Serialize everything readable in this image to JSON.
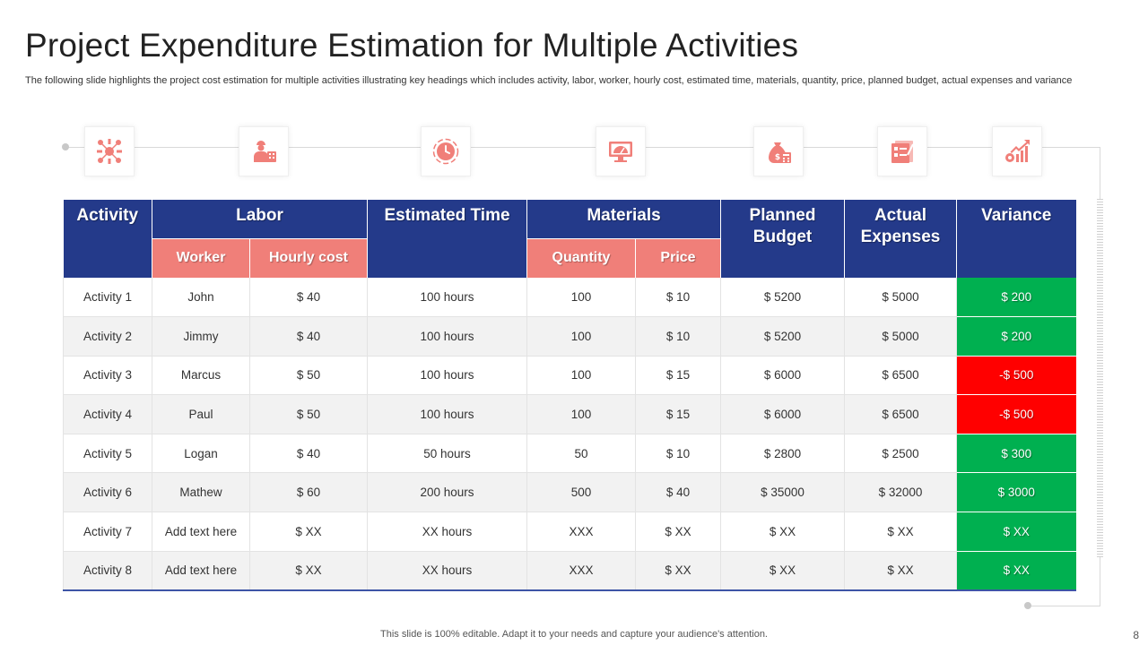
{
  "title": "Project Expenditure Estimation for Multiple Activities",
  "subtitle": "The following slide highlights the project cost estimation for multiple activities illustrating key headings which includes activity, labor, worker, hourly cost, estimated time, materials, quantity, price, planned budget, actual expenses and variance",
  "colors": {
    "header_blue": "#243a8a",
    "subheader_coral": "#f07f79",
    "positive_green": "#00b050",
    "negative_red": "#ff0000",
    "icon_coral": "#f07f79"
  },
  "icons": [
    "network-icon",
    "workers-icon",
    "clock-icon",
    "monitor-icon",
    "money-bag-icon",
    "checklist-icon",
    "growth-chart-icon"
  ],
  "table": {
    "headers": {
      "activity": "Activity",
      "labor": "Labor",
      "estimated_time": "Estimated Time",
      "materials": "Materials",
      "planned_budget": "Planned Budget",
      "actual_expenses": "Actual Expenses",
      "variance": "Variance"
    },
    "subheaders": {
      "worker": "Worker",
      "hourly_cost": "Hourly cost",
      "quantity": "Quantity",
      "price": "Price"
    },
    "rows": [
      {
        "activity": "Activity 1",
        "worker": "John",
        "hourly_cost": "$ 40",
        "time": "100  hours",
        "quantity": "100",
        "price": "$ 10",
        "planned": "$ 5200",
        "actual": "$ 5000",
        "variance": "$ 200",
        "status": "positive"
      },
      {
        "activity": "Activity 2",
        "worker": "Jimmy",
        "hourly_cost": "$ 40",
        "time": "100  hours",
        "quantity": "100",
        "price": "$ 10",
        "planned": "$ 5200",
        "actual": "$ 5000",
        "variance": "$ 200",
        "status": "positive"
      },
      {
        "activity": "Activity 3",
        "worker": "Marcus",
        "hourly_cost": "$ 50",
        "time": "100  hours",
        "quantity": "100",
        "price": "$ 15",
        "planned": "$ 6000",
        "actual": "$ 6500",
        "variance": "-$ 500",
        "status": "negative"
      },
      {
        "activity": "Activity 4",
        "worker": "Paul",
        "hourly_cost": "$ 50",
        "time": "100  hours",
        "quantity": "100",
        "price": "$ 15",
        "planned": "$ 6000",
        "actual": "$ 6500",
        "variance": "-$ 500",
        "status": "negative"
      },
      {
        "activity": "Activity 5",
        "worker": "Logan",
        "hourly_cost": "$ 40",
        "time": "50  hours",
        "quantity": "50",
        "price": "$ 10",
        "planned": "$ 2800",
        "actual": "$ 2500",
        "variance": "$ 300",
        "status": "positive"
      },
      {
        "activity": "Activity 6",
        "worker": "Mathew",
        "hourly_cost": "$ 60",
        "time": "200  hours",
        "quantity": "500",
        "price": "$ 40",
        "planned": "$ 35000",
        "actual": "$ 32000",
        "variance": "$ 3000",
        "status": "positive"
      },
      {
        "activity": "Activity 7",
        "worker": "Add text here",
        "hourly_cost": "$ XX",
        "time": "XX  hours",
        "quantity": "XXX",
        "price": "$ XX",
        "planned": "$ XX",
        "actual": "$ XX",
        "variance": "$ XX",
        "status": "positive"
      },
      {
        "activity": "Activity 8",
        "worker": "Add text here",
        "hourly_cost": "$ XX",
        "time": "XX  hours",
        "quantity": "XXX",
        "price": "$ XX",
        "planned": "$ XX",
        "actual": "$ XX",
        "variance": "$ XX",
        "status": "positive"
      }
    ]
  },
  "footer": "This slide is 100% editable. Adapt it to your needs and capture your audience's attention.",
  "page_number": "8"
}
